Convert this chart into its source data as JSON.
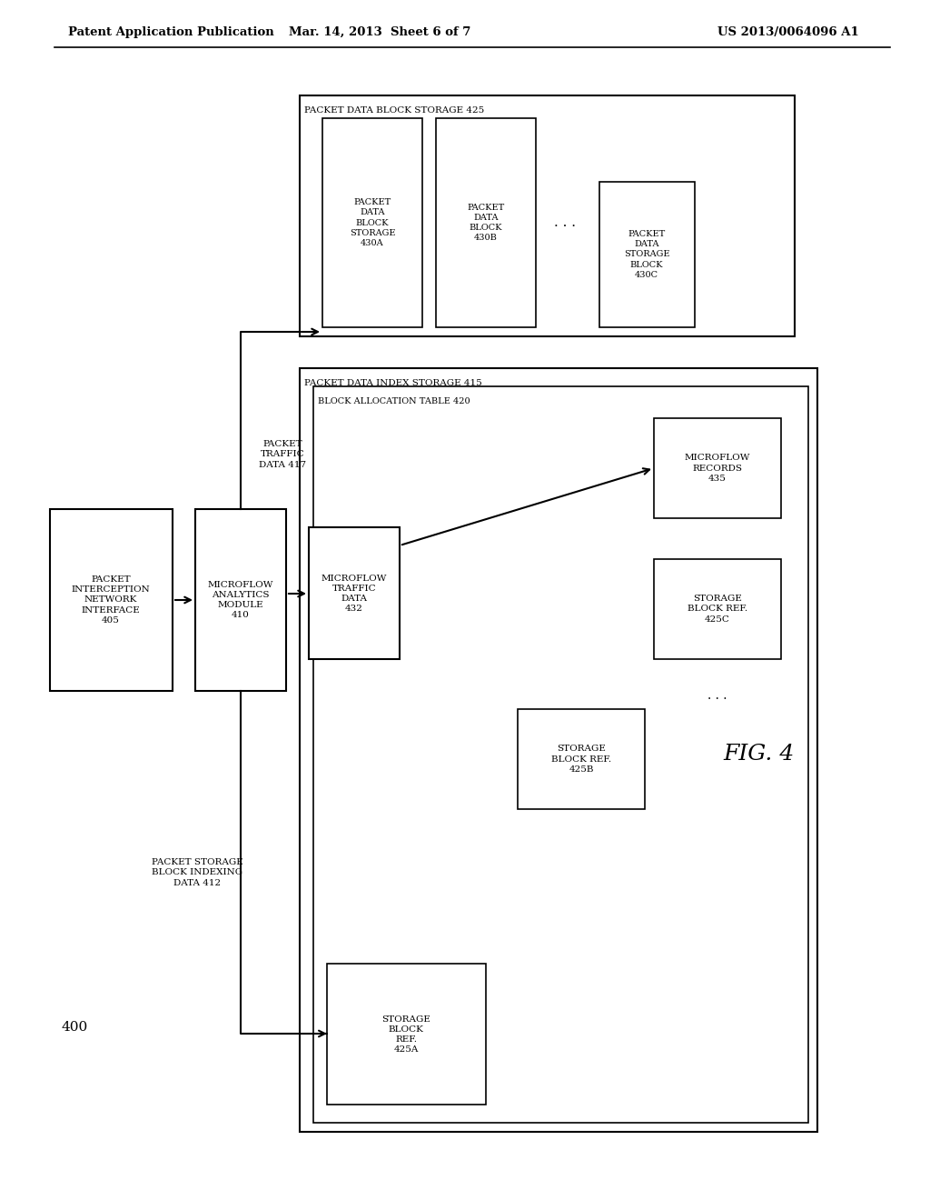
{
  "header_left": "Patent Application Publication",
  "header_mid": "Mar. 14, 2013  Sheet 6 of 7",
  "header_right": "US 2013/0064096 A1",
  "fig_label": "FIG. 4",
  "diagram_label": "400",
  "background": "#ffffff",
  "text_color": "#000000"
}
